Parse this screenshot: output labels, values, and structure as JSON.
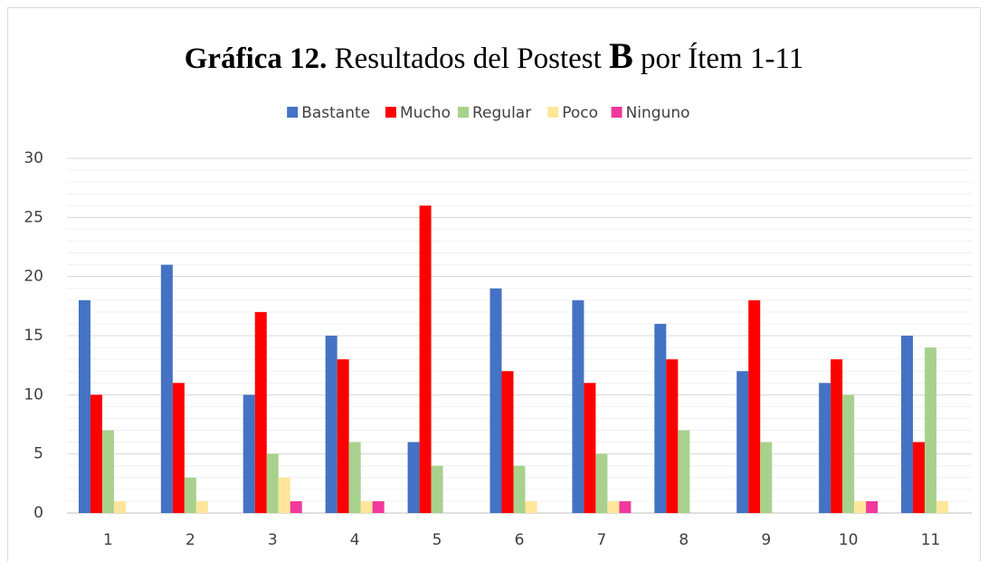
{
  "chart_data": {
    "type": "bar",
    "title": [
      {
        "text": "Gráfica 12.",
        "bold": true
      },
      {
        "text": "Resultados del Postest",
        "bold": false
      },
      {
        "text": "B",
        "bold": true,
        "large": true
      },
      {
        "text": "por Ítem 1-11",
        "bold": false
      }
    ],
    "categories": [
      "1",
      "2",
      "3",
      "4",
      "5",
      "6",
      "7",
      "8",
      "9",
      "10",
      "11"
    ],
    "series": [
      {
        "name": "Bastante",
        "color": "#4472c4",
        "values": [
          18,
          21,
          10,
          15,
          6,
          19,
          18,
          16,
          12,
          11,
          15
        ]
      },
      {
        "name": "Mucho",
        "color": "#ff0000",
        "values": [
          10,
          11,
          17,
          13,
          26,
          12,
          11,
          13,
          18,
          13,
          6
        ]
      },
      {
        "name": "Regular",
        "color": "#a9d18e",
        "values": [
          7,
          3,
          5,
          6,
          4,
          4,
          5,
          7,
          6,
          10,
          14
        ]
      },
      {
        "name": "Poco",
        "color": "#ffe699",
        "values": [
          1,
          1,
          3,
          1,
          0,
          1,
          1,
          0,
          0,
          1,
          1
        ]
      },
      {
        "name": "Ninguno",
        "color": "#f0399a",
        "values": [
          0,
          0,
          1,
          1,
          0,
          0,
          1,
          0,
          0,
          1,
          0
        ]
      }
    ],
    "ylim": [
      0,
      30
    ],
    "yticks": [
      0,
      5,
      10,
      15,
      20,
      25,
      30
    ],
    "minor_ytick_step": 1,
    "grid": true,
    "legend": "top"
  }
}
